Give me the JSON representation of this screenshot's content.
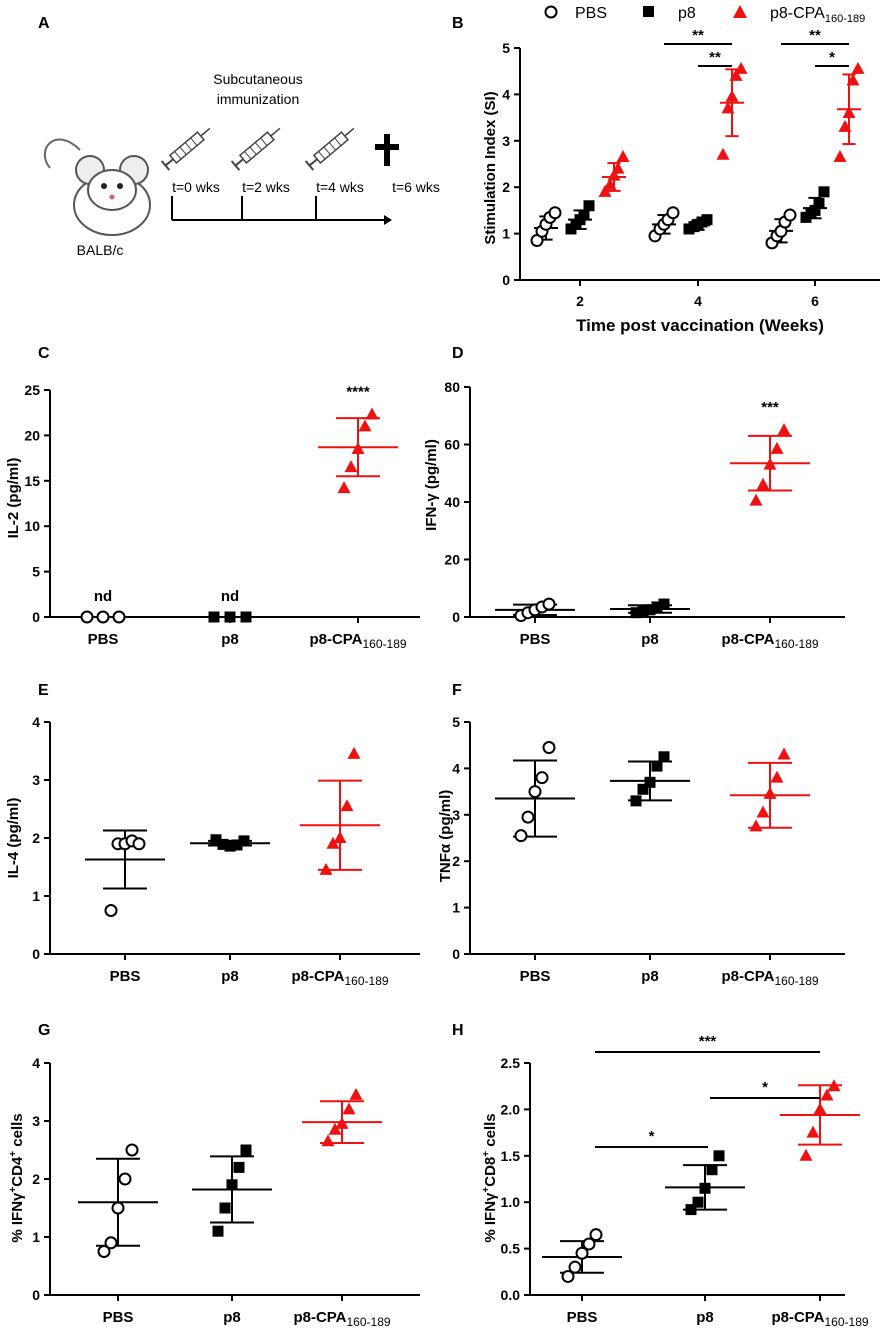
{
  "panel_labels": {
    "A": "A",
    "B": "B",
    "C": "C",
    "D": "D",
    "E": "E",
    "F": "F",
    "G": "G",
    "H": "H"
  },
  "legend": [
    {
      "label": "PBS",
      "marker": "open-circle",
      "color": "#000000"
    },
    {
      "label": "p8",
      "marker": "filled-square",
      "color": "#000000"
    },
    {
      "label": "p8-CPA",
      "sub": "160-189",
      "marker": "filled-triangle",
      "color": "#ee1111"
    }
  ],
  "colors": {
    "pbs": "#000000",
    "p8": "#000000",
    "cpa": "#ee1111"
  },
  "schematic": {
    "title_line1": "Subcutaneous",
    "title_line2": "immunization",
    "timepoints": [
      "t=0 wks",
      "t=2 wks",
      "t=4 wks",
      "t=6 wks"
    ],
    "mouse_label": "BALB/c",
    "icons": [
      "syringe-icon",
      "syringe-icon",
      "syringe-icon",
      "cross-icon"
    ]
  },
  "chart_data": [
    {
      "id": "B",
      "type": "scatter",
      "ylabel": "Stimulation Index (SI)",
      "xlabel": "Time post vaccination (Weeks)",
      "categories": [
        "2",
        "4",
        "6"
      ],
      "ylim": [
        0,
        5
      ],
      "yticks": [
        "0",
        "1",
        "2",
        "3",
        "4",
        "5"
      ],
      "series": [
        {
          "name": "PBS",
          "points": [
            [
              0.85,
              1.05,
              1.2,
              1.35,
              1.45
            ],
            [
              0.95,
              1.1,
              1.2,
              1.3,
              1.45
            ],
            [
              0.8,
              0.95,
              1.05,
              1.25,
              1.4
            ]
          ],
          "means": [
            1.12,
            1.2,
            1.06
          ],
          "sd": [
            0.25,
            0.2,
            0.25
          ]
        },
        {
          "name": "p8",
          "points": [
            [
              1.1,
              1.2,
              1.3,
              1.4,
              1.6
            ],
            [
              1.1,
              1.15,
              1.2,
              1.25,
              1.3
            ],
            [
              1.35,
              1.45,
              1.5,
              1.65,
              1.9
            ]
          ],
          "means": [
            1.3,
            1.18,
            1.55
          ],
          "sd": [
            0.2,
            0.1,
            0.22
          ]
        },
        {
          "name": "p8-CPA160-189",
          "points": [
            [
              1.9,
              2.05,
              2.25,
              2.4,
              2.65
            ],
            [
              2.7,
              3.7,
              3.95,
              4.4,
              4.55
            ],
            [
              2.65,
              3.3,
              3.6,
              4.3,
              4.55
            ]
          ],
          "means": [
            2.22,
            3.82,
            3.68
          ],
          "sd": [
            0.3,
            0.72,
            0.75
          ]
        }
      ],
      "significance": [
        {
          "label": "**",
          "from": "PBS",
          "to": "p8-CPA160-189",
          "category": "4"
        },
        {
          "label": "**",
          "from": "p8",
          "to": "p8-CPA160-189",
          "category": "4"
        },
        {
          "label": "**",
          "from": "PBS",
          "to": "p8-CPA160-189",
          "category": "6"
        },
        {
          "label": "*",
          "from": "p8",
          "to": "p8-CPA160-189",
          "category": "6"
        }
      ]
    },
    {
      "id": "C",
      "type": "scatter",
      "ylabel": "IL-2 (pg/ml)",
      "categories": [
        "PBS",
        "p8",
        "p8-CPA"
      ],
      "cat_subscript": "160-189",
      "ylim": [
        0,
        25
      ],
      "yticks": [
        "0",
        "5",
        "10",
        "15",
        "20",
        "25"
      ],
      "groups": [
        {
          "name": "PBS",
          "points": [
            0,
            0,
            0
          ],
          "mean": null,
          "sd": null,
          "note": "nd"
        },
        {
          "name": "p8",
          "points": [
            0,
            0,
            0
          ],
          "mean": null,
          "sd": null,
          "note": "nd"
        },
        {
          "name": "p8-CPA160-189",
          "points": [
            14.2,
            16.5,
            18.5,
            21.0,
            22.3
          ],
          "mean": 18.7,
          "sd": 3.2,
          "note": "****"
        }
      ]
    },
    {
      "id": "D",
      "type": "scatter",
      "ylabel": "IFN-γ (pg/ml)",
      "categories": [
        "PBS",
        "p8",
        "p8-CPA"
      ],
      "cat_subscript": "160-189",
      "ylim": [
        0,
        80
      ],
      "yticks": [
        "0",
        "20",
        "40",
        "60",
        "80"
      ],
      "groups": [
        {
          "name": "PBS",
          "points": [
            0.5,
            1.5,
            2.5,
            3.5,
            4.5
          ],
          "mean": 2.5,
          "sd": 1.8
        },
        {
          "name": "p8",
          "points": [
            1.5,
            2.0,
            2.5,
            3.5,
            4.5
          ],
          "mean": 2.8,
          "sd": 1.3
        },
        {
          "name": "p8-CPA160-189",
          "points": [
            40.5,
            46.0,
            53.0,
            58.5,
            65.0
          ],
          "mean": 53.5,
          "sd": 9.5,
          "note": "***"
        }
      ]
    },
    {
      "id": "E",
      "type": "scatter",
      "ylabel": "IL-4 (pg/ml)",
      "categories": [
        "PBS",
        "p8",
        "p8-CPA"
      ],
      "cat_subscript": "160-189",
      "ylim": [
        0,
        4
      ],
      "yticks": [
        "0",
        "1",
        "2",
        "3",
        "4"
      ],
      "groups": [
        {
          "name": "PBS",
          "points": [
            0.75,
            1.9,
            1.9,
            1.95,
            1.9
          ],
          "mean": 1.63,
          "sd": 0.5
        },
        {
          "name": "p8",
          "points": [
            1.97,
            1.89,
            1.86,
            1.88,
            1.95
          ],
          "mean": 1.91,
          "sd": 0.04
        },
        {
          "name": "p8-CPA160-189",
          "points": [
            1.45,
            1.9,
            2.0,
            2.55,
            3.45
          ],
          "mean": 2.22,
          "sd": 0.77
        }
      ]
    },
    {
      "id": "F",
      "type": "scatter",
      "ylabel": "TNFα (pg/ml)",
      "categories": [
        "PBS",
        "p8",
        "p8-CPA"
      ],
      "cat_subscript": "160-189",
      "ylim": [
        0,
        5
      ],
      "yticks": [
        "0",
        "1",
        "2",
        "3",
        "4",
        "5"
      ],
      "groups": [
        {
          "name": "PBS",
          "points": [
            2.55,
            2.95,
            3.5,
            3.8,
            4.45
          ],
          "mean": 3.35,
          "sd": 0.82
        },
        {
          "name": "p8",
          "points": [
            3.3,
            3.55,
            3.7,
            4.05,
            4.25
          ],
          "mean": 3.73,
          "sd": 0.42
        },
        {
          "name": "p8-CPA160-189",
          "points": [
            2.75,
            3.05,
            3.45,
            3.8,
            4.3
          ],
          "mean": 3.42,
          "sd": 0.7
        }
      ]
    },
    {
      "id": "G",
      "type": "scatter",
      "ylabel_parts": [
        "% IFNγ",
        "+",
        "CD4",
        "+",
        " cells"
      ],
      "categories": [
        "PBS",
        "p8",
        "p8-CPA"
      ],
      "cat_subscript": "160-189",
      "ylim": [
        0,
        4
      ],
      "yticks": [
        "0",
        "1",
        "2",
        "3",
        "4"
      ],
      "groups": [
        {
          "name": "PBS",
          "points": [
            0.75,
            0.9,
            1.5,
            2.0,
            2.5
          ],
          "mean": 1.6,
          "sd": 0.75
        },
        {
          "name": "p8",
          "points": [
            1.1,
            1.5,
            1.9,
            2.2,
            2.5
          ],
          "mean": 1.82,
          "sd": 0.57
        },
        {
          "name": "p8-CPA160-189",
          "points": [
            2.65,
            2.85,
            2.95,
            3.2,
            3.45
          ],
          "mean": 2.98,
          "sd": 0.36
        }
      ]
    },
    {
      "id": "H",
      "type": "scatter",
      "ylabel_parts": [
        "% IFNγ",
        "+",
        "CD8",
        "+",
        " cells"
      ],
      "categories": [
        "PBS",
        "p8",
        "p8-CPA"
      ],
      "cat_subscript": "160-189",
      "ylim": [
        0,
        2.5
      ],
      "yticks": [
        "0.0",
        "0.5",
        "1.0",
        "1.5",
        "2.0",
        "2.5"
      ],
      "groups": [
        {
          "name": "PBS",
          "points": [
            0.2,
            0.3,
            0.45,
            0.55,
            0.65
          ],
          "mean": 0.41,
          "sd": 0.17
        },
        {
          "name": "p8",
          "points": [
            0.92,
            1.0,
            1.15,
            1.35,
            1.5
          ],
          "mean": 1.16,
          "sd": 0.24
        },
        {
          "name": "p8-CPA160-189",
          "points": [
            1.5,
            1.75,
            2.0,
            2.15,
            2.25
          ],
          "mean": 1.94,
          "sd": 0.32
        }
      ],
      "significance": [
        {
          "label": "***",
          "from": "PBS",
          "to": "p8-CPA160-189"
        },
        {
          "label": "*",
          "from": "p8",
          "to": "p8-CPA160-189"
        },
        {
          "label": "*",
          "from": "PBS",
          "to": "p8"
        }
      ]
    }
  ]
}
